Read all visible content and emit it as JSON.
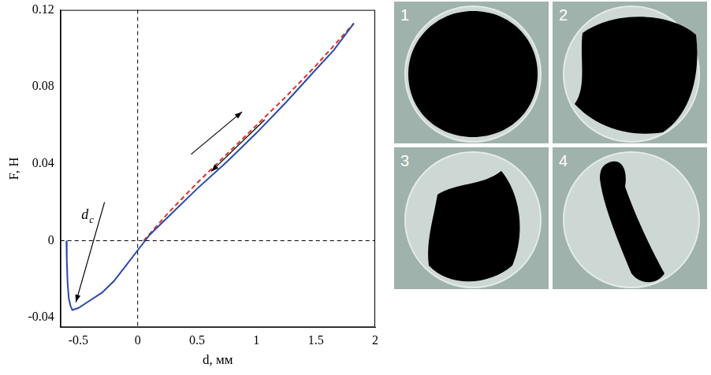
{
  "chart_data": {
    "type": "line",
    "x_label": "d, мм",
    "y_label": "F, Н",
    "xlim": [
      -0.65,
      2
    ],
    "ylim": [
      -0.045,
      0.12
    ],
    "xticks": [
      -0.5,
      0,
      0.5,
      1,
      1.5,
      2
    ],
    "yticks": [
      -0.04,
      0,
      0.04,
      0.08,
      0.12
    ],
    "grid": false,
    "reference_lines": {
      "x": [
        0
      ],
      "y": [
        0
      ]
    },
    "series": [
      {
        "color": "#2b4aa8",
        "line_style": "solid",
        "x": [
          -0.6,
          -0.597,
          -0.59,
          -0.58,
          -0.565,
          -0.55,
          -0.5,
          -0.4,
          -0.3,
          -0.2,
          -0.1,
          0,
          0.1,
          0.25,
          0.5,
          0.75,
          1.0,
          1.25,
          1.5,
          1.65,
          1.82
        ],
        "values": [
          0,
          -0.01,
          -0.022,
          -0.03,
          -0.034,
          -0.036,
          -0.035,
          -0.031,
          -0.027,
          -0.021,
          -0.013,
          -0.005,
          0.003,
          0.012,
          0.027,
          0.041,
          0.056,
          0.072,
          0.089,
          0.099,
          0.113
        ]
      },
      {
        "color": "#e0302a",
        "line_style": "dashed",
        "x": [
          0.05,
          0.25,
          0.5,
          0.75,
          1.0,
          1.25,
          1.5,
          1.82
        ],
        "values": [
          0,
          0.014,
          0.03,
          0.045,
          0.06,
          0.075,
          0.091,
          0.113
        ]
      }
    ],
    "annotations": [
      {
        "text": "d",
        "subscript": "c"
      }
    ]
  },
  "panels": [
    {
      "label": "1"
    },
    {
      "label": "2"
    },
    {
      "label": "3"
    },
    {
      "label": "4"
    }
  ]
}
